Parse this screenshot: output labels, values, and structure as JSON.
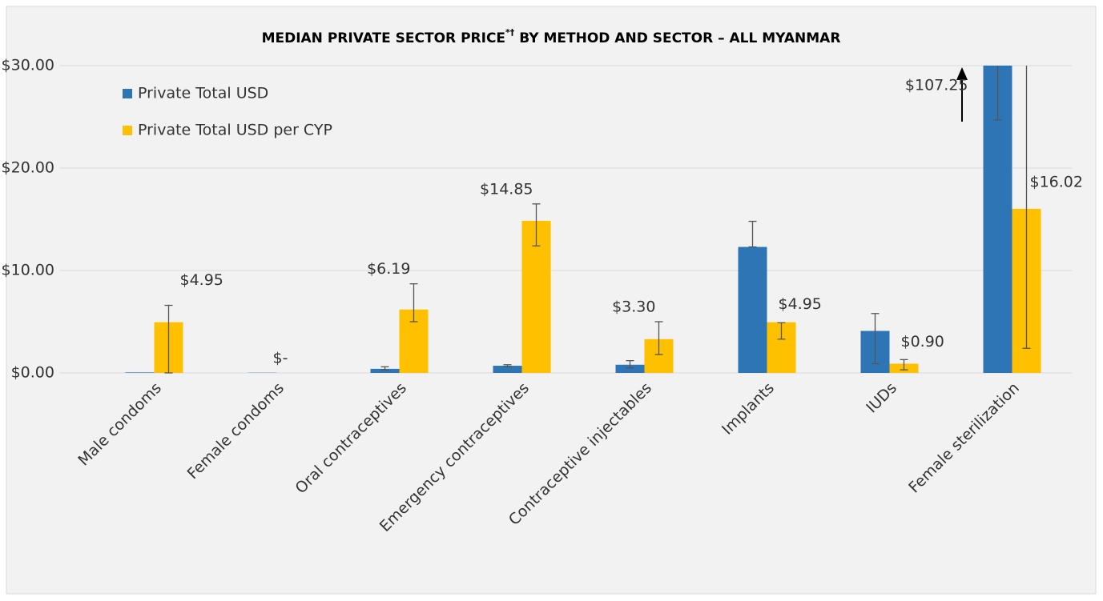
{
  "chart_data": {
    "type": "bar",
    "title": "MEDIAN PRIVATE SECTOR PRICE",
    "title_superscript": "*†",
    "title_rest": " BY METHOD AND SECTOR – ALL MYANMAR",
    "categories": [
      "Male condoms",
      "Female condoms",
      "Oral contraceptives",
      "Emergency contraceptives",
      "Contraceptive injectables",
      "Implants",
      "IUDs",
      "Female sterilization"
    ],
    "series": [
      {
        "name": "Private Total USD",
        "color": "#2e75b6",
        "values": [
          0.05,
          0.02,
          0.4,
          0.7,
          0.8,
          12.3,
          4.1,
          107.25
        ],
        "value_labels": [
          null,
          null,
          null,
          null,
          null,
          null,
          null,
          "$107.25"
        ],
        "lower": [
          null,
          null,
          0.3,
          0.6,
          0.5,
          12.3,
          0.9,
          24.7
        ],
        "upper": [
          null,
          null,
          0.6,
          0.8,
          1.2,
          14.8,
          5.8,
          null
        ]
      },
      {
        "name": "Private Total USD per CYP",
        "color": "#ffc000",
        "values": [
          4.95,
          0,
          6.19,
          14.85,
          3.3,
          4.95,
          0.9,
          16.02
        ],
        "value_labels": [
          "$4.95",
          "$-",
          "$6.19",
          "$14.85",
          "$3.30",
          "$4.95",
          "$0.90",
          "$16.02"
        ],
        "lower": [
          0,
          null,
          5.0,
          12.4,
          1.8,
          3.3,
          0.3,
          2.4
        ],
        "upper": [
          6.6,
          null,
          8.7,
          16.5,
          5.0,
          4.9,
          1.3,
          null
        ]
      }
    ],
    "ylim": [
      0,
      30
    ],
    "yticks": [
      {
        "value": 0,
        "label": "$0.00"
      },
      {
        "value": 10,
        "label": "$10.00"
      },
      {
        "value": 20,
        "label": "$20.00"
      },
      {
        "value": 30,
        "label": "$30.00"
      }
    ],
    "grid": true,
    "legend": "top-left"
  }
}
